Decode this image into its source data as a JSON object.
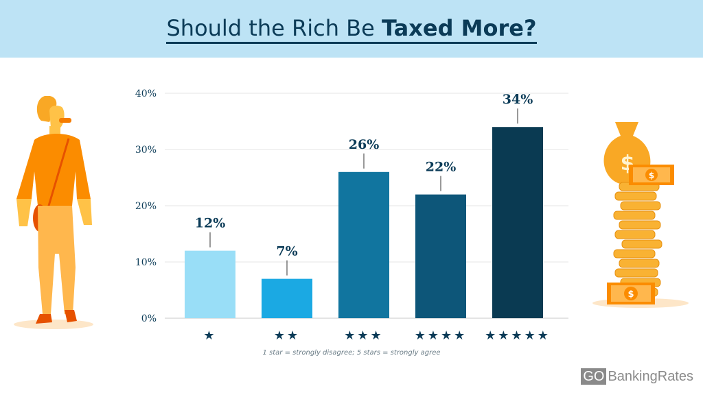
{
  "header": {
    "title_regular": "Should the Rich Be ",
    "title_bold": "Taxed More?"
  },
  "chart_data": {
    "type": "bar",
    "title": "Should the Rich Be Taxed More?",
    "categories": [
      "★",
      "★★",
      "★★★",
      "★★★★",
      "★★★★★"
    ],
    "values": [
      12,
      7,
      26,
      22,
      34
    ],
    "data_labels": [
      "12%",
      "7%",
      "26%",
      "22%",
      "34%"
    ],
    "ylim": [
      0,
      40
    ],
    "yticks": [
      "0%",
      "10%",
      "20%",
      "30%",
      "40%"
    ],
    "grid": true,
    "bar_colors": [
      "#99def7",
      "#1ba9e3",
      "#11759f",
      "#0d5679",
      "#0a3a52"
    ],
    "note": "1 star = strongly disagree; 5 stars = strongly agree"
  },
  "brand": {
    "logo_go": "GO",
    "logo_text": "BankingRates"
  },
  "colors": {
    "header_bg": "#bde3f5",
    "title": "#0b3b57",
    "star": "#0b3b57"
  }
}
